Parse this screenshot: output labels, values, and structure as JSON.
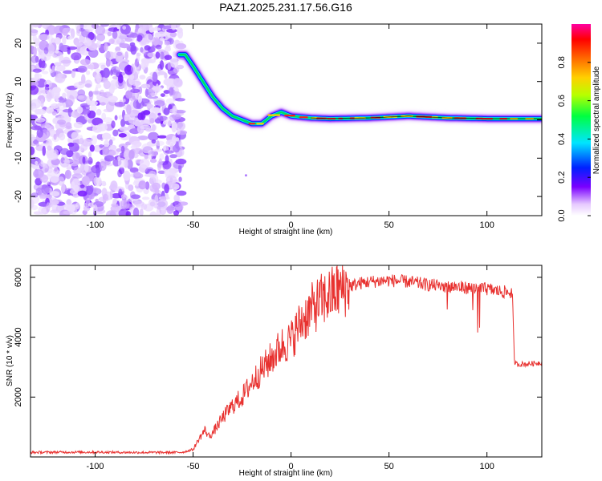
{
  "title": "PAZ1.2025.231.17.56.G16",
  "chart_data": [
    {
      "type": "heatmap",
      "name": "spectrogram",
      "xlabel": "Height of straight line (km)",
      "ylabel": "Frequency (Hz)",
      "xlim": [
        -133,
        128
      ],
      "ylim": [
        -25,
        25
      ],
      "xticks": [
        -100,
        -50,
        0,
        50,
        100
      ],
      "yticks": [
        -20,
        -10,
        0,
        10,
        20
      ],
      "noise_region_x": [
        -133,
        -55
      ],
      "ridge": {
        "x": [
          -57,
          -54,
          -50,
          -45,
          -40,
          -35,
          -30,
          -25,
          -20,
          -15,
          -10,
          -5,
          0,
          10,
          20,
          40,
          60,
          80,
          100,
          128
        ],
        "y": [
          17,
          17,
          14,
          10,
          6,
          3,
          1,
          0,
          -1,
          -1,
          1,
          2,
          1,
          0.5,
          0.3,
          0.5,
          1,
          0.5,
          0.3,
          0.3
        ]
      },
      "colorbar": {
        "label": "Normalized spectral amplitude",
        "range": [
          0,
          1
        ],
        "ticks": [
          0.0,
          0.2,
          0.4,
          0.6,
          0.8
        ]
      }
    },
    {
      "type": "line",
      "name": "snr",
      "xlabel": "Height of straight line (km)",
      "ylabel": "SNR (10 * v/v)",
      "xlim": [
        -133,
        128
      ],
      "ylim": [
        0,
        6400
      ],
      "xticks": [
        -100,
        -50,
        0,
        50,
        100
      ],
      "yticks": [
        2000,
        4000,
        6000
      ],
      "color": "#e8312f",
      "x": [
        -133,
        -120,
        -100,
        -80,
        -60,
        -55,
        -50,
        -47,
        -44,
        -42,
        -40,
        -37,
        -35,
        -30,
        -25,
        -20,
        -15,
        -10,
        -5,
        0,
        5,
        10,
        15,
        20,
        25,
        30,
        35,
        40,
        50,
        60,
        70,
        80,
        90,
        100,
        110,
        112,
        113,
        114,
        115,
        120,
        128
      ],
      "y": [
        150,
        160,
        160,
        150,
        150,
        160,
        250,
        600,
        900,
        700,
        800,
        1100,
        1300,
        1700,
        2000,
        2500,
        2900,
        3300,
        3700,
        3900,
        4500,
        4900,
        5200,
        5400,
        5600,
        5700,
        5800,
        5850,
        5900,
        5850,
        5750,
        5700,
        5650,
        5600,
        5500,
        5500,
        5450,
        3200,
        3100,
        3100,
        3150
      ]
    }
  ]
}
